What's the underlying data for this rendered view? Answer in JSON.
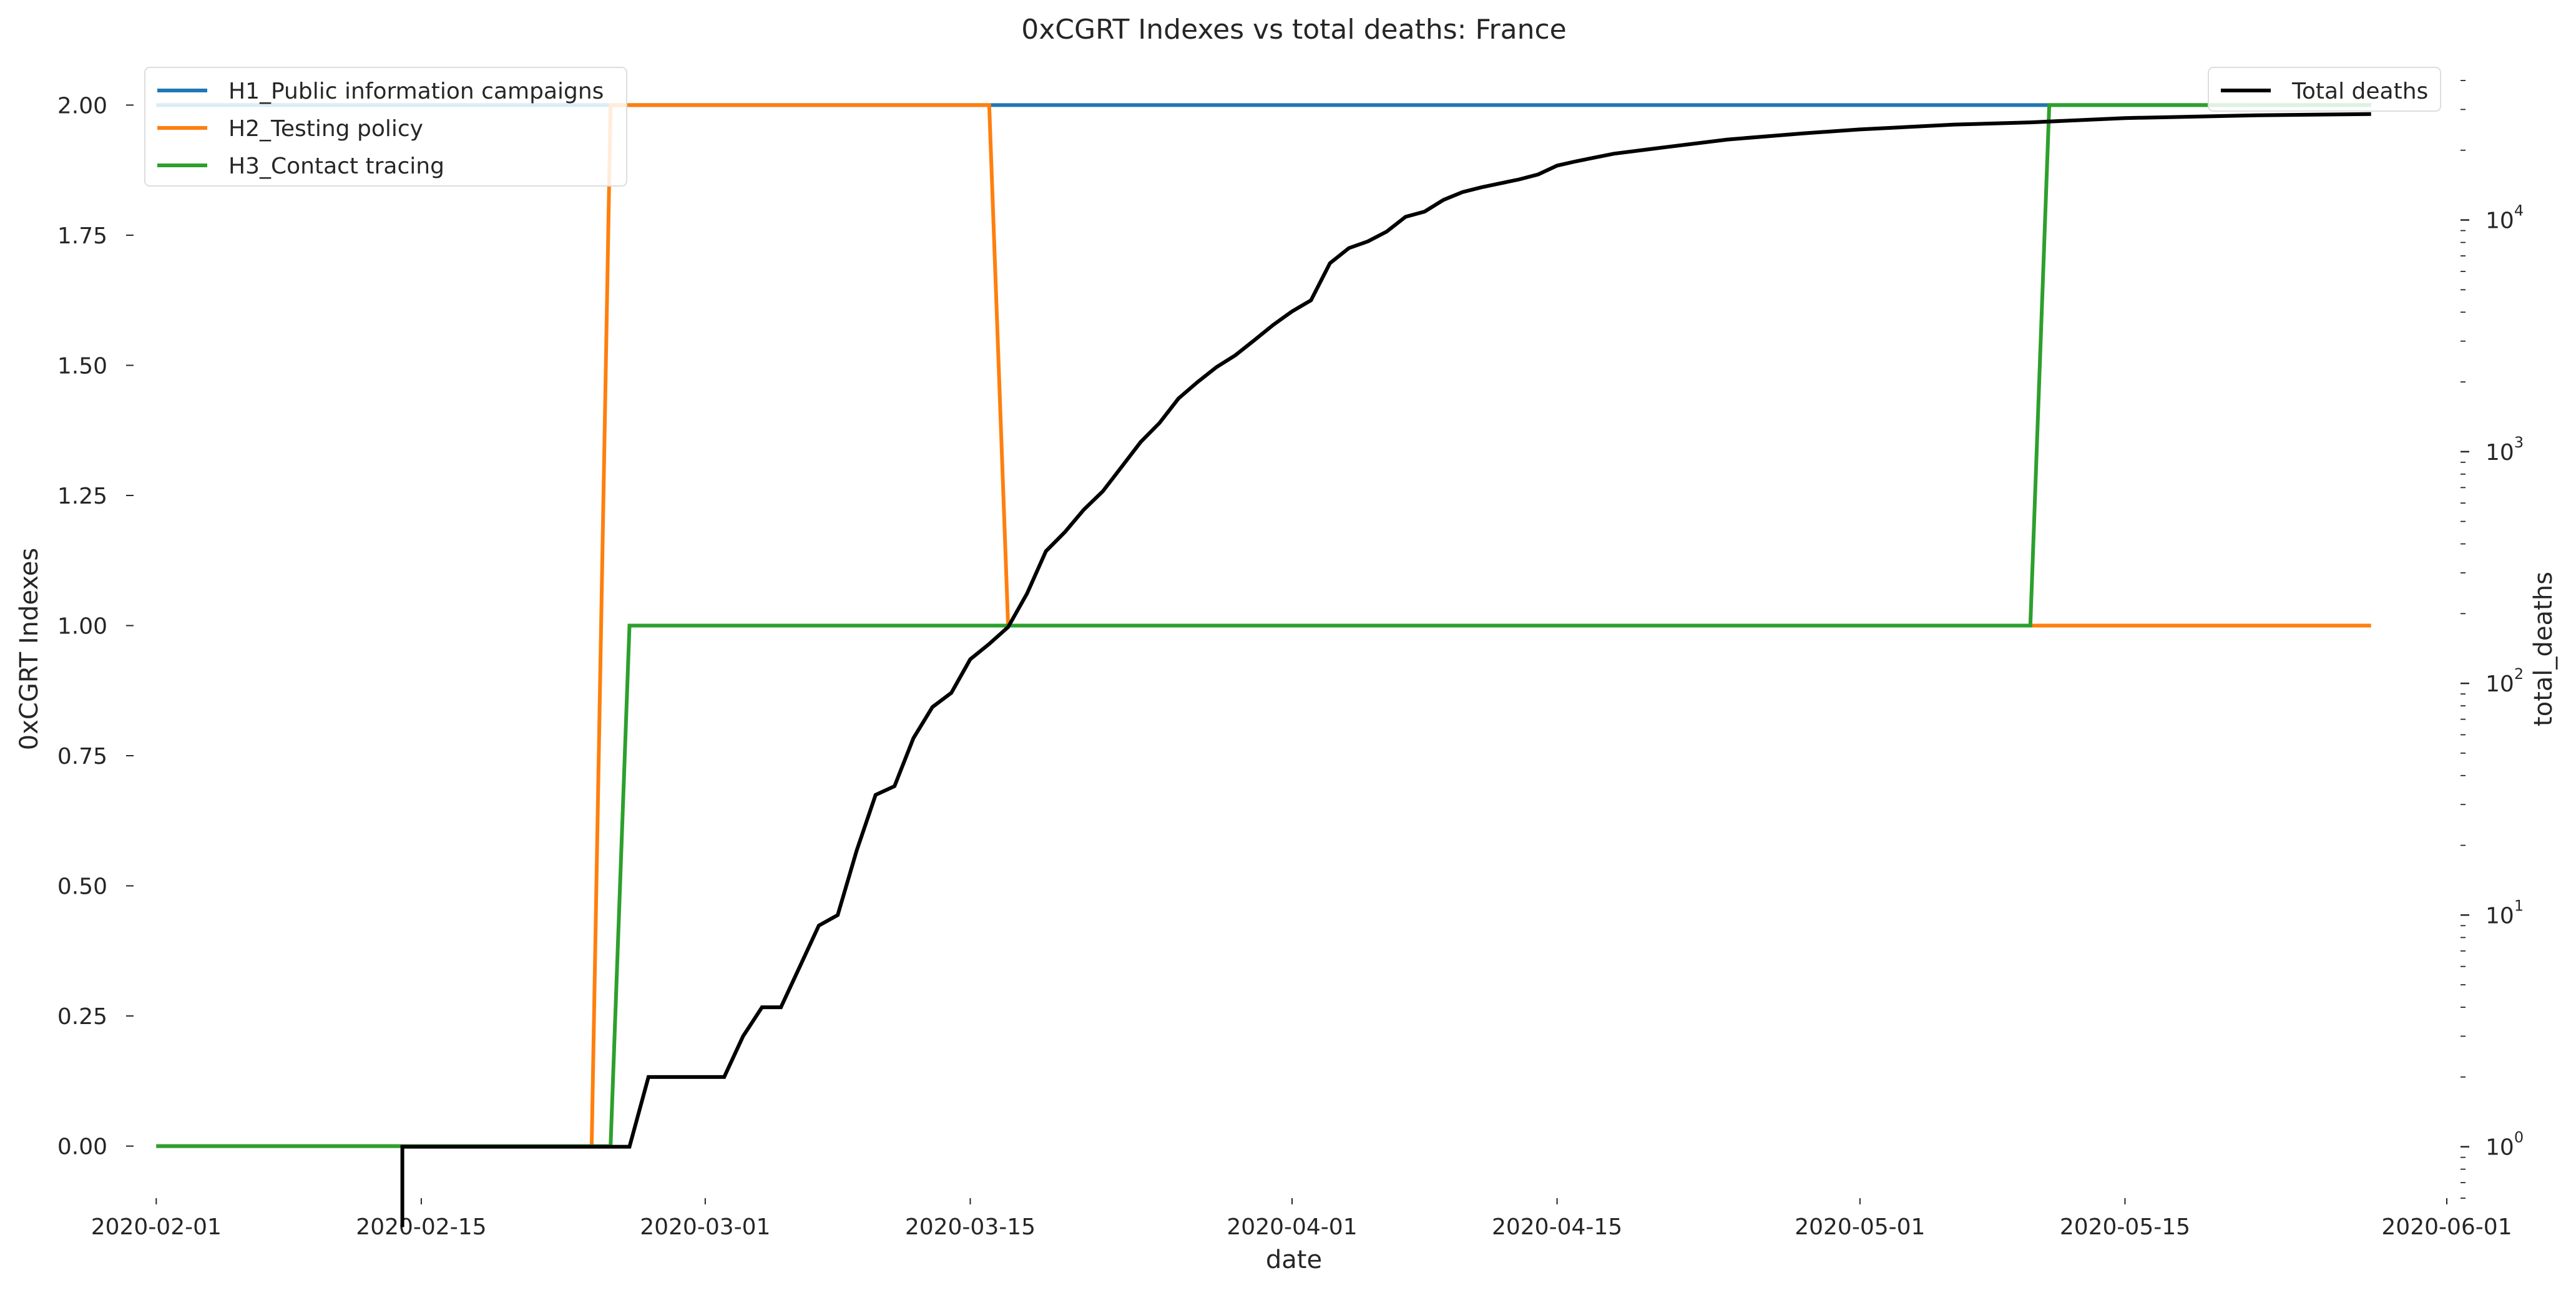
{
  "chart_data": {
    "type": "line",
    "title": "0xCGRT Indexes vs total deaths:  France",
    "xlabel": "date",
    "ylabel_left": "0xCGRT Indexes",
    "ylabel_right": "total_deaths",
    "x_range": [
      "2020-01-31",
      "2020-06-01"
    ],
    "x_ticks": [
      "2020-02-01",
      "2020-02-15",
      "2020-03-01",
      "2020-03-15",
      "2020-04-01",
      "2020-04-15",
      "2020-05-01",
      "2020-05-15",
      "2020-06-01"
    ],
    "ylim_left": [
      -0.1,
      2.07
    ],
    "y_ticks_left": [
      "0.00",
      "0.25",
      "0.50",
      "0.75",
      "1.00",
      "1.25",
      "1.50",
      "1.75",
      "2.00"
    ],
    "y_scale_right": "log",
    "ylim_right": [
      0.6,
      45000
    ],
    "y_ticks_right": [
      {
        "value": 1,
        "base": "10",
        "exp": "0"
      },
      {
        "value": 10,
        "base": "10",
        "exp": "1"
      },
      {
        "value": 100,
        "base": "10",
        "exp": "2"
      },
      {
        "value": 1000,
        "base": "10",
        "exp": "3"
      },
      {
        "value": 10000,
        "base": "10",
        "exp": "4"
      }
    ],
    "grid": false,
    "legend_left_position": "top-left",
    "legend_right_position": "top-right",
    "series": [
      {
        "name": "H1_Public information campaigns",
        "axis": "left",
        "color": "#1f77b4",
        "points": [
          [
            "2020-02-01",
            2
          ],
          [
            "2020-05-28",
            2
          ]
        ]
      },
      {
        "name": "H2_Testing policy",
        "axis": "left",
        "color": "#ff7f0e",
        "points": [
          [
            "2020-02-01",
            0
          ],
          [
            "2020-02-24",
            0
          ],
          [
            "2020-02-25",
            2
          ],
          [
            "2020-03-16",
            2
          ],
          [
            "2020-03-17",
            1
          ],
          [
            "2020-05-28",
            1
          ]
        ]
      },
      {
        "name": "H3_Contact tracing",
        "axis": "left",
        "color": "#2ca02c",
        "points": [
          [
            "2020-02-01",
            0
          ],
          [
            "2020-02-25",
            0
          ],
          [
            "2020-02-26",
            1
          ],
          [
            "2020-05-10",
            1
          ],
          [
            "2020-05-11",
            2
          ],
          [
            "2020-05-28",
            2
          ]
        ]
      },
      {
        "name": "Total deaths",
        "axis": "right",
        "color": "#000000",
        "points": [
          [
            "2020-02-14",
            0.45
          ],
          [
            "2020-02-14",
            1
          ],
          [
            "2020-02-26",
            1
          ],
          [
            "2020-02-27",
            2
          ],
          [
            "2020-03-02",
            2
          ],
          [
            "2020-03-03",
            3
          ],
          [
            "2020-03-04",
            4
          ],
          [
            "2020-03-05",
            4
          ],
          [
            "2020-03-06",
            6
          ],
          [
            "2020-03-07",
            9
          ],
          [
            "2020-03-08",
            10
          ],
          [
            "2020-03-09",
            19
          ],
          [
            "2020-03-10",
            33
          ],
          [
            "2020-03-11",
            36
          ],
          [
            "2020-03-12",
            58
          ],
          [
            "2020-03-13",
            79
          ],
          [
            "2020-03-14",
            91
          ],
          [
            "2020-03-15",
            127
          ],
          [
            "2020-03-16",
            148
          ],
          [
            "2020-03-17",
            175
          ],
          [
            "2020-03-18",
            244
          ],
          [
            "2020-03-19",
            372
          ],
          [
            "2020-03-20",
            450
          ],
          [
            "2020-03-21",
            562
          ],
          [
            "2020-03-22",
            674
          ],
          [
            "2020-03-23",
            860
          ],
          [
            "2020-03-24",
            1100
          ],
          [
            "2020-03-25",
            1331
          ],
          [
            "2020-03-26",
            1696
          ],
          [
            "2020-03-27",
            1995
          ],
          [
            "2020-03-28",
            2314
          ],
          [
            "2020-03-29",
            2606
          ],
          [
            "2020-03-30",
            3024
          ],
          [
            "2020-03-31",
            3523
          ],
          [
            "2020-04-01",
            4032
          ],
          [
            "2020-04-02",
            4503
          ],
          [
            "2020-04-03",
            6507
          ],
          [
            "2020-04-04",
            7560
          ],
          [
            "2020-04-05",
            8078
          ],
          [
            "2020-04-06",
            8911
          ],
          [
            "2020-04-07",
            10328
          ],
          [
            "2020-04-08",
            10869
          ],
          [
            "2020-04-09",
            12210
          ],
          [
            "2020-04-10",
            13197
          ],
          [
            "2020-04-11",
            13832
          ],
          [
            "2020-04-12",
            14393
          ],
          [
            "2020-04-13",
            14967
          ],
          [
            "2020-04-14",
            15729
          ],
          [
            "2020-04-15",
            17167
          ],
          [
            "2020-04-16",
            17920
          ],
          [
            "2020-04-18",
            19323
          ],
          [
            "2020-04-20",
            20265
          ],
          [
            "2020-04-24",
            22245
          ],
          [
            "2020-04-28",
            23660
          ],
          [
            "2020-05-01",
            24594
          ],
          [
            "2020-05-06",
            25809
          ],
          [
            "2020-05-10",
            26380
          ],
          [
            "2020-05-15",
            27529
          ],
          [
            "2020-05-22",
            28289
          ],
          [
            "2020-05-28",
            28662
          ]
        ]
      }
    ]
  }
}
